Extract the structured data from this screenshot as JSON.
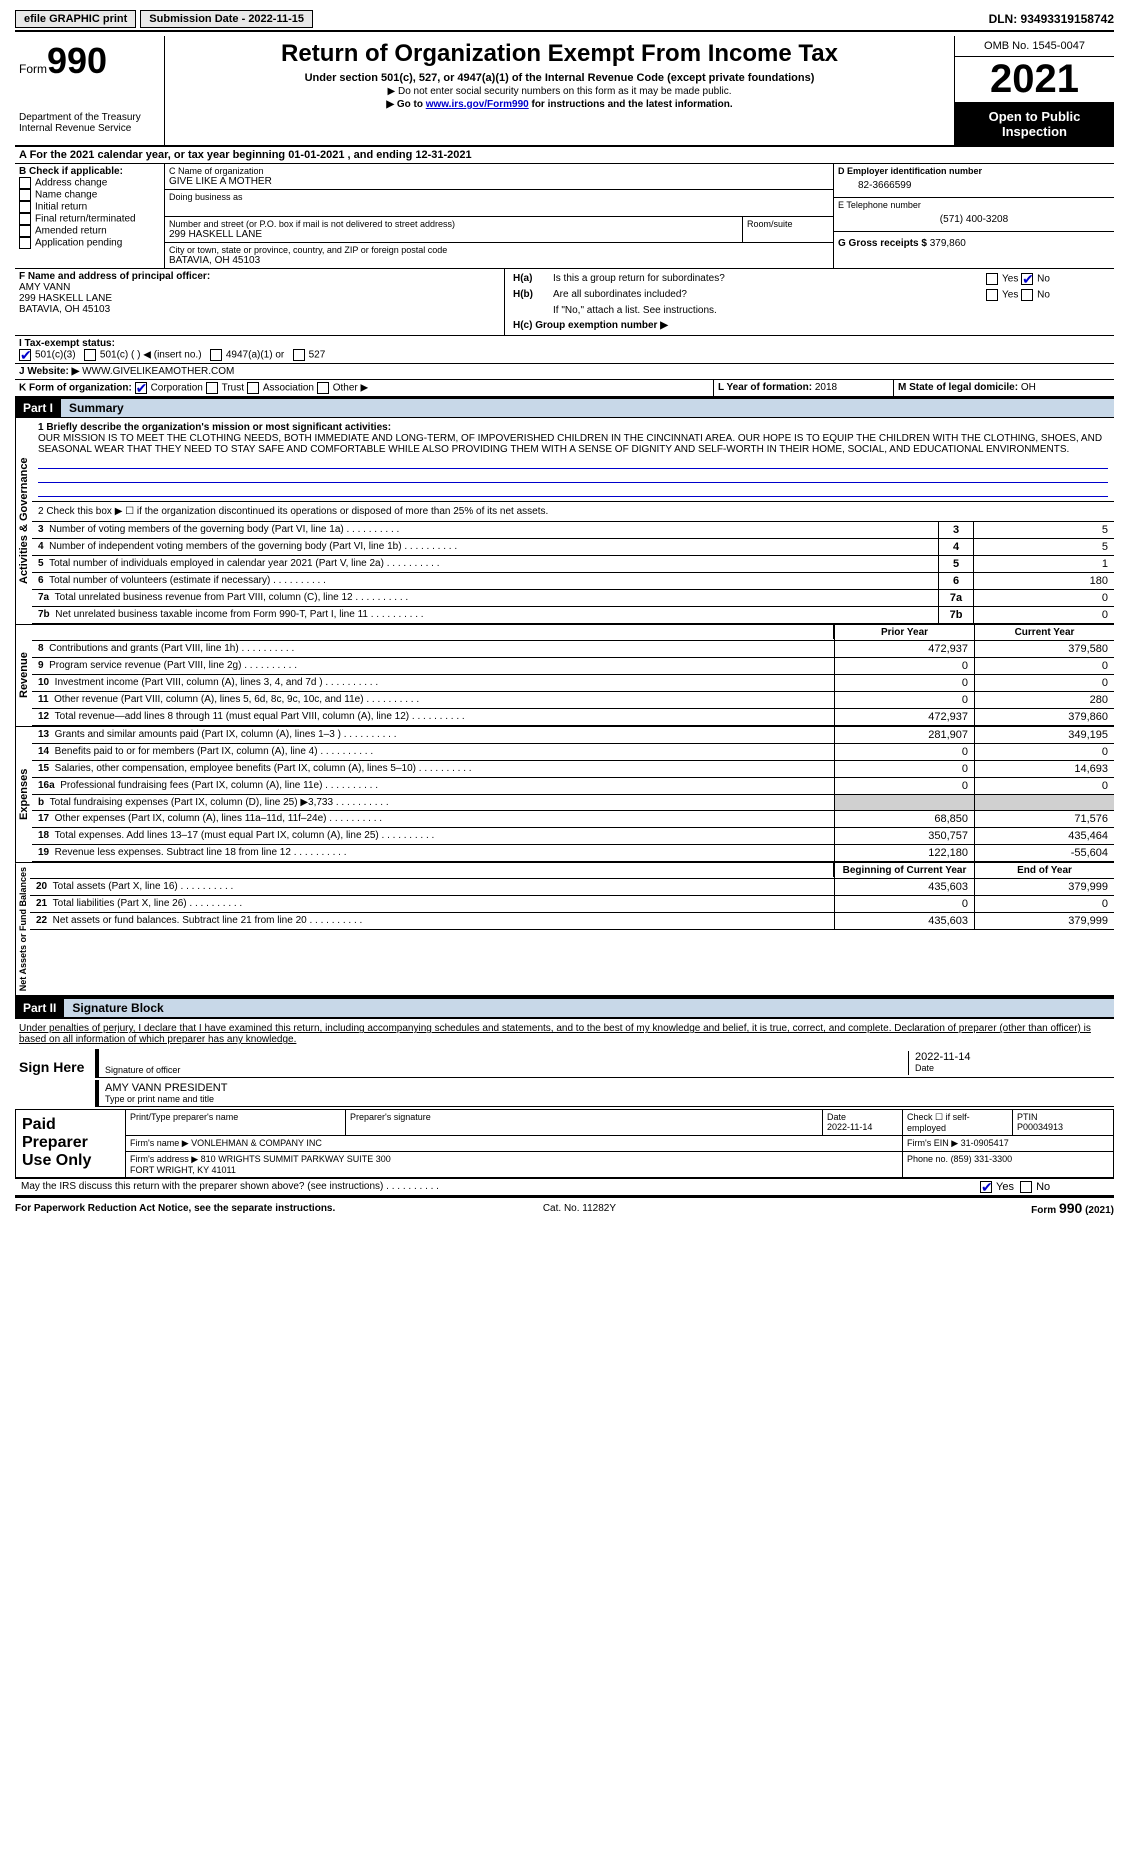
{
  "top": {
    "efile": "efile GRAPHIC print",
    "submission": "Submission Date - 2022-11-15",
    "dln": "DLN: 93493319158742"
  },
  "header": {
    "form_label": "Form",
    "form_num": "990",
    "dept": "Department of the Treasury\nInternal Revenue Service",
    "title": "Return of Organization Exempt From Income Tax",
    "subtitle": "Under section 501(c), 527, or 4947(a)(1) of the Internal Revenue Code (except private foundations)",
    "note1": "▶ Do not enter social security numbers on this form as it may be made public.",
    "note2_pre": "▶ Go to ",
    "note2_link": "www.irs.gov/Form990",
    "note2_post": " for instructions and the latest information.",
    "omb": "OMB No. 1545-0047",
    "year": "2021",
    "open": "Open to Public Inspection"
  },
  "section_a": "A  For the 2021 calendar year, or tax year beginning 01-01-2021      , and ending 12-31-2021",
  "section_b": {
    "label": "B Check if applicable:",
    "opts": [
      "Address change",
      "Name change",
      "Initial return",
      "Final return/terminated",
      "Amended return",
      "Application pending"
    ]
  },
  "section_c": {
    "name_label": "C Name of organization",
    "name": "GIVE LIKE A MOTHER",
    "dba_label": "Doing business as",
    "street_label": "Number and street (or P.O. box if mail is not delivered to street address)",
    "room_label": "Room/suite",
    "street": "299 HASKELL LANE",
    "city_label": "City or town, state or province, country, and ZIP or foreign postal code",
    "city": "BATAVIA, OH  45103"
  },
  "section_d": {
    "label": "D Employer identification number",
    "value": "82-3666599"
  },
  "section_e": {
    "label": "E Telephone number",
    "value": "(571) 400-3208"
  },
  "section_g": {
    "label": "G Gross receipts $",
    "value": "379,860"
  },
  "section_f": {
    "label": "F  Name and address of principal officer:",
    "name": "AMY VANN",
    "addr1": "299 HASKELL LANE",
    "addr2": "BATAVIA, OH  45103"
  },
  "section_h": {
    "ha": "H(a)  Is this a group return for subordinates?",
    "hb": "H(b)  Are all subordinates included?",
    "hb_note": "If \"No,\" attach a list. See instructions.",
    "hc": "H(c)  Group exemption number ▶",
    "yes": "Yes",
    "no": "No"
  },
  "section_i": {
    "label": "I   Tax-exempt status:",
    "o1": "501(c)(3)",
    "o2": "501(c) (  )",
    "o2b": "◀ (insert no.)",
    "o3": "4947(a)(1) or",
    "o4": "527"
  },
  "section_j": {
    "label": "J   Website: ▶",
    "value": "WWW.GIVELIKEAMOTHER.COM"
  },
  "section_k": {
    "label": "K Form of organization:",
    "o1": "Corporation",
    "o2": "Trust",
    "o3": "Association",
    "o4": "Other ▶"
  },
  "section_l": {
    "label": "L Year of formation:",
    "value": "2018"
  },
  "section_m": {
    "label": "M State of legal domicile:",
    "value": "OH"
  },
  "part1": {
    "header": "Part I",
    "title": "Summary",
    "vert1": "Activities & Governance",
    "vert2": "Revenue",
    "vert3": "Expenses",
    "vert4": "Net Assets or Fund Balances",
    "line1_label": "1  Briefly describe the organization's mission or most significant activities:",
    "line1_text": "OUR MISSION IS TO MEET THE CLOTHING NEEDS, BOTH IMMEDIATE AND LONG-TERM, OF IMPOVERISHED CHILDREN IN THE CINCINNATI AREA. OUR HOPE IS TO EQUIP THE CHILDREN WITH THE CLOTHING, SHOES, AND SEASONAL WEAR THAT THEY NEED TO STAY SAFE AND COMFORTABLE WHILE ALSO PROVIDING THEM WITH A SENSE OF DIGNITY AND SELF-WORTH IN THEIR HOME, SOCIAL, AND EDUCATIONAL ENVIRONMENTS.",
    "line2": "2   Check this box ▶ ☐ if the organization discontinued its operations or disposed of more than 25% of its net assets.",
    "rows_gov": [
      {
        "n": "3",
        "label": "Number of voting members of the governing body (Part VI, line 1a)",
        "val": "5"
      },
      {
        "n": "4",
        "label": "Number of independent voting members of the governing body (Part VI, line 1b)",
        "val": "5"
      },
      {
        "n": "5",
        "label": "Total number of individuals employed in calendar year 2021 (Part V, line 2a)",
        "val": "1"
      },
      {
        "n": "6",
        "label": "Total number of volunteers (estimate if necessary)",
        "val": "180"
      },
      {
        "n": "7a",
        "label": "Total unrelated business revenue from Part VIII, column (C), line 12",
        "val": "0"
      },
      {
        "n": "7b",
        "label": "Net unrelated business taxable income from Form 990-T, Part I, line 11",
        "val": "0"
      }
    ],
    "col_prior": "Prior Year",
    "col_current": "Current Year",
    "rows_rev": [
      {
        "n": "8",
        "label": "Contributions and grants (Part VIII, line 1h)",
        "prior": "472,937",
        "curr": "379,580"
      },
      {
        "n": "9",
        "label": "Program service revenue (Part VIII, line 2g)",
        "prior": "0",
        "curr": "0"
      },
      {
        "n": "10",
        "label": "Investment income (Part VIII, column (A), lines 3, 4, and 7d )",
        "prior": "0",
        "curr": "0"
      },
      {
        "n": "11",
        "label": "Other revenue (Part VIII, column (A), lines 5, 6d, 8c, 9c, 10c, and 11e)",
        "prior": "0",
        "curr": "280"
      },
      {
        "n": "12",
        "label": "Total revenue—add lines 8 through 11 (must equal Part VIII, column (A), line 12)",
        "prior": "472,937",
        "curr": "379,860"
      }
    ],
    "rows_exp": [
      {
        "n": "13",
        "label": "Grants and similar amounts paid (Part IX, column (A), lines 1–3 )",
        "prior": "281,907",
        "curr": "349,195"
      },
      {
        "n": "14",
        "label": "Benefits paid to or for members (Part IX, column (A), line 4)",
        "prior": "0",
        "curr": "0"
      },
      {
        "n": "15",
        "label": "Salaries, other compensation, employee benefits (Part IX, column (A), lines 5–10)",
        "prior": "0",
        "curr": "14,693"
      },
      {
        "n": "16a",
        "label": "Professional fundraising fees (Part IX, column (A), line 11e)",
        "prior": "0",
        "curr": "0"
      },
      {
        "n": "b",
        "label": "Total fundraising expenses (Part IX, column (D), line 25) ▶3,733",
        "prior": "",
        "curr": "",
        "shade": true
      },
      {
        "n": "17",
        "label": "Other expenses (Part IX, column (A), lines 11a–11d, 11f–24e)",
        "prior": "68,850",
        "curr": "71,576"
      },
      {
        "n": "18",
        "label": "Total expenses. Add lines 13–17 (must equal Part IX, column (A), line 25)",
        "prior": "350,757",
        "curr": "435,464"
      },
      {
        "n": "19",
        "label": "Revenue less expenses. Subtract line 18 from line 12",
        "prior": "122,180",
        "curr": "-55,604"
      }
    ],
    "col_begin": "Beginning of Current Year",
    "col_end": "End of Year",
    "rows_net": [
      {
        "n": "20",
        "label": "Total assets (Part X, line 16)",
        "prior": "435,603",
        "curr": "379,999"
      },
      {
        "n": "21",
        "label": "Total liabilities (Part X, line 26)",
        "prior": "0",
        "curr": "0"
      },
      {
        "n": "22",
        "label": "Net assets or fund balances. Subtract line 21 from line 20",
        "prior": "435,603",
        "curr": "379,999"
      }
    ]
  },
  "part2": {
    "header": "Part II",
    "title": "Signature Block",
    "declaration": "Under penalties of perjury, I declare that I have examined this return, including accompanying schedules and statements, and to the best of my knowledge and belief, it is true, correct, and complete. Declaration of preparer (other than officer) is based on all information of which preparer has any knowledge.",
    "sign_here": "Sign Here",
    "sig_officer": "Signature of officer",
    "sig_date": "2022-11-14",
    "date_label": "Date",
    "officer_name": "AMY VANN  PRESIDENT",
    "type_name": "Type or print name and title",
    "paid_prep": "Paid Preparer Use Only",
    "prep_name_label": "Print/Type preparer's name",
    "prep_sig_label": "Preparer's signature",
    "prep_date": "2022-11-14",
    "check_self": "Check ☐ if self-employed",
    "ptin_label": "PTIN",
    "ptin": "P00034913",
    "firm_name_label": "Firm's name   ▶",
    "firm_name": "VONLEHMAN & COMPANY INC",
    "firm_ein_label": "Firm's EIN ▶",
    "firm_ein": "31-0905417",
    "firm_addr_label": "Firm's address ▶",
    "firm_addr": "810 WRIGHTS SUMMIT PARKWAY SUITE 300\nFORT WRIGHT, KY  41011",
    "phone_label": "Phone no.",
    "phone": "(859) 331-3300",
    "may_irs": "May the IRS discuss this return with the preparer shown above? (see instructions)",
    "yes": "Yes",
    "no": "No"
  },
  "footer": {
    "paperwork": "For Paperwork Reduction Act Notice, see the separate instructions.",
    "cat": "Cat. No. 11282Y",
    "form": "Form 990 (2021)"
  }
}
